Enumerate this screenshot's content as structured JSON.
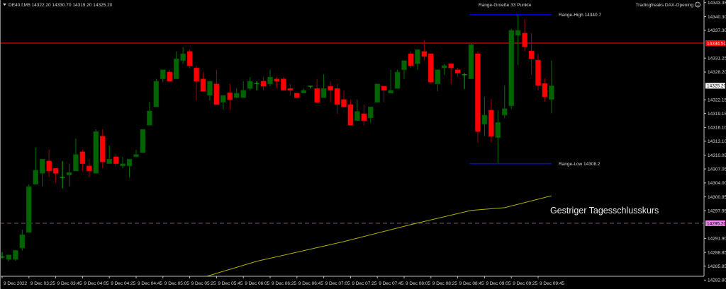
{
  "header": {
    "symbol_line": "DE40.f,M5  14322.20 14330.70 14319.20 14325.20",
    "indicator_name": "Tradingfreaks DAX-Opening",
    "indicator_icon": "smiley-icon"
  },
  "colors": {
    "background": "#000000",
    "bull_body": "#006400",
    "bull_wick": "#007000",
    "doji": "#00c000",
    "bear_body": "#ff0000",
    "bear_wick": "#a00000",
    "axis": "#c0c0c0",
    "range_lines": "#0000ff",
    "prev_day_high_line": "#c00000",
    "prev_close_line": "#6e4a6e",
    "ma_line": "#b0b000"
  },
  "annotations": {
    "range_size": "Range-Groeße 33 Punkte",
    "range_high": "Range-High 14340.7",
    "range_low": "Range-Low 14308.2",
    "prev_close": "Gestriger Tagesschlusskurs"
  },
  "chart_data": {
    "type": "candlestick",
    "symbol": "DE40.f",
    "timeframe": "M5",
    "ylim": [
      14282.8,
      14343.35
    ],
    "grid": false,
    "y_ticks": [
      "14343.35",
      "14340.30",
      "14337.30",
      "14331.25",
      "14328.20",
      "14322.15",
      "14319.15",
      "14316.10",
      "14313.10",
      "14310.05",
      "14307.05",
      "14304.00",
      "14300.95",
      "14297.95",
      "14291.90",
      "14288.85",
      "14285.85",
      "14282.80"
    ],
    "price_labels": [
      {
        "text": "14334.51",
        "value": 14334.51,
        "bg": "#ff0000",
        "fg": "#ffffff"
      },
      {
        "text": "14325.20",
        "value": 14325.2,
        "bg": "#ffffff",
        "fg": "#000000"
      },
      {
        "text": "14295.20",
        "value": 14295.2,
        "bg": "#ee82ee",
        "fg": "#000000"
      }
    ],
    "x_ticks": [
      {
        "time": "03:05",
        "text": "9 Dec 2022"
      },
      {
        "time": "03:25",
        "text": "9 Dec 03:25"
      },
      {
        "time": "03:45",
        "text": "9 Dec 03:45"
      },
      {
        "time": "04:05",
        "text": "9 Dec 04:05"
      },
      {
        "time": "04:25",
        "text": "9 Dec 04:25"
      },
      {
        "time": "04:45",
        "text": "9 Dec 04:45"
      },
      {
        "time": "05:05",
        "text": "9 Dec 05:05"
      },
      {
        "time": "05:25",
        "text": "9 Dec 05:25"
      },
      {
        "time": "05:45",
        "text": "9 Dec 05:45"
      },
      {
        "time": "06:05",
        "text": "9 Dec 06:05"
      },
      {
        "time": "06:25",
        "text": "9 Dec 06:25"
      },
      {
        "time": "06:45",
        "text": "9 Dec 06:45"
      },
      {
        "time": "07:05",
        "text": "9 Dec 07:05"
      },
      {
        "time": "07:25",
        "text": "9 Dec 07:25"
      },
      {
        "time": "07:45",
        "text": "9 Dec 07:45"
      },
      {
        "time": "08:05",
        "text": "9 Dec 08:05"
      },
      {
        "time": "08:25",
        "text": "9 Dec 08:25"
      },
      {
        "time": "08:45",
        "text": "9 Dec 08:45"
      },
      {
        "time": "09:05",
        "text": "9 Dec 09:05"
      },
      {
        "time": "09:25",
        "text": "9 Dec 09:25"
      },
      {
        "time": "09:45",
        "text": "9 Dec 09:45"
      }
    ],
    "hlines": [
      {
        "value": 14334.51,
        "style": "solid",
        "color": "#c00000"
      },
      {
        "value": 14295.2,
        "style": "dashed",
        "color": "#6e4a6e"
      }
    ],
    "range": {
      "high": 14340.7,
      "low": 14308.2,
      "from": "08:55",
      "to": "09:55"
    },
    "moving_average": [
      [
        "05:10",
        14281.2
      ],
      [
        "06:15",
        14286.9
      ],
      [
        "07:20",
        14291.2
      ],
      [
        "08:10",
        14294.9
      ],
      [
        "08:55",
        14298.0
      ],
      [
        "09:20",
        14298.6
      ],
      [
        "09:55",
        14301.2
      ]
    ],
    "candles_columns": [
      "time",
      "open",
      "high",
      "low",
      "close"
    ],
    "candles": [
      [
        "03:05",
        14288.1,
        14288.9,
        14287.5,
        14287.8
      ],
      [
        "03:10",
        14287.3,
        14288.3,
        14286.9,
        14288.3
      ],
      [
        "03:15",
        14287.3,
        14289.3,
        14287.0,
        14289.3
      ],
      [
        "03:20",
        14289.8,
        14293.8,
        14289.2,
        14292.7
      ],
      [
        "03:25",
        14293.2,
        14303.7,
        14293.2,
        14303.2
      ],
      [
        "03:30",
        14303.7,
        14311.7,
        14303.7,
        14306.8
      ],
      [
        "03:35",
        14306.1,
        14309.2,
        14303.2,
        14309.2
      ],
      [
        "03:40",
        14308.8,
        14311.2,
        14305.2,
        14306.6
      ],
      [
        "03:45",
        14307.2,
        14307.2,
        14304.1,
        14306.1
      ],
      [
        "03:50",
        14305.1,
        14308.8,
        14302.8,
        14305.2
      ],
      [
        "03:55",
        14305.7,
        14308.2,
        14303.2,
        14306.3
      ],
      [
        "04:00",
        14306.6,
        14313.7,
        14306.6,
        14310.2
      ],
      [
        "04:05",
        14310.8,
        14311.2,
        14306.6,
        14308.2
      ],
      [
        "04:10",
        14307.7,
        14309.2,
        14305.2,
        14306.6
      ],
      [
        "04:15",
        14306.1,
        14315.7,
        14306.1,
        14315.2
      ],
      [
        "04:20",
        14314.2,
        14315.7,
        14307.2,
        14308.6
      ],
      [
        "04:25",
        14308.2,
        14312.2,
        14308.2,
        14309.2
      ],
      [
        "04:30",
        14309.7,
        14310.2,
        14307.7,
        14308.2
      ],
      [
        "04:35",
        14307.7,
        14309.7,
        14307.2,
        14308.2
      ],
      [
        "04:40",
        14307.7,
        14309.2,
        14305.2,
        14309.2
      ],
      [
        "04:45",
        14309.7,
        14311.2,
        14309.7,
        14310.2
      ],
      [
        "04:50",
        14310.6,
        14315.7,
        14310.6,
        14315.7
      ],
      [
        "04:55",
        14316.6,
        14321.7,
        14316.6,
        14319.7
      ],
      [
        "05:00",
        14320.6,
        14326.7,
        14320.6,
        14326.2
      ],
      [
        "05:05",
        14326.7,
        14328.7,
        14326.0,
        14328.7
      ],
      [
        "05:10",
        14328.2,
        14328.7,
        14326.2,
        14326.2
      ],
      [
        "05:15",
        14326.7,
        14332.7,
        14326.7,
        14331.1
      ],
      [
        "05:20",
        14330.7,
        14333.6,
        14330.0,
        14332.2
      ],
      [
        "05:25",
        14332.7,
        14333.1,
        14329.0,
        14329.6
      ],
      [
        "05:30",
        14329.1,
        14329.6,
        14322.0,
        14326.2
      ],
      [
        "05:35",
        14326.7,
        14328.2,
        14324.0,
        14324.0
      ],
      [
        "05:40",
        14323.1,
        14326.2,
        14322.0,
        14326.2
      ],
      [
        "05:45",
        14325.6,
        14328.7,
        14321.1,
        14321.1
      ],
      [
        "05:50",
        14321.6,
        14323.1,
        14320.0,
        14323.1
      ],
      [
        "05:55",
        14323.7,
        14325.6,
        14320.0,
        14322.2
      ],
      [
        "06:00",
        14322.6,
        14324.6,
        14322.6,
        14323.6
      ],
      [
        "06:05",
        14322.6,
        14326.2,
        14322.6,
        14324.2
      ],
      [
        "06:10",
        14324.6,
        14327.1,
        14324.2,
        14326.2
      ],
      [
        "06:15",
        14325.6,
        14326.2,
        14324.2,
        14325.7
      ],
      [
        "06:20",
        14326.2,
        14327.1,
        14324.2,
        14325.1
      ],
      [
        "06:25",
        14325.6,
        14328.7,
        14325.1,
        14327.1
      ],
      [
        "06:30",
        14326.7,
        14327.1,
        14324.6,
        14326.2
      ],
      [
        "06:35",
        14326.7,
        14327.1,
        14324.2,
        14324.2
      ],
      [
        "06:40",
        14324.6,
        14325.6,
        14323.1,
        14324.2
      ],
      [
        "06:45",
        14323.6,
        14323.6,
        14322.6,
        14322.6
      ],
      [
        "06:50",
        14323.6,
        14324.6,
        14323.6,
        14324.2
      ],
      [
        "06:55",
        14325.0,
        14325.1,
        14324.6,
        14325.1
      ],
      [
        "07:00",
        14324.6,
        14326.7,
        14321.6,
        14321.6
      ],
      [
        "07:05",
        14322.6,
        14327.7,
        14322.6,
        14324.6
      ],
      [
        "07:10",
        14325.1,
        14326.2,
        14321.6,
        14324.2
      ],
      [
        "07:15",
        14324.6,
        14325.6,
        14319.1,
        14321.1
      ],
      [
        "07:20",
        14322.2,
        14324.2,
        14320.6,
        14320.6
      ],
      [
        "07:25",
        14321.1,
        14322.2,
        14316.6,
        14316.6
      ],
      [
        "07:30",
        14317.6,
        14322.2,
        14317.6,
        14319.6
      ],
      [
        "07:35",
        14319.1,
        14321.1,
        14316.6,
        14317.6
      ],
      [
        "07:40",
        14318.2,
        14320.6,
        14317.1,
        14320.6
      ],
      [
        "07:45",
        14321.6,
        14325.6,
        14321.6,
        14325.6
      ],
      [
        "07:50",
        14325.1,
        14325.1,
        14321.6,
        14324.2
      ],
      [
        "07:55",
        14323.6,
        14328.7,
        14323.6,
        14324.2
      ],
      [
        "08:00",
        14324.6,
        14328.7,
        14324.6,
        14328.2
      ],
      [
        "08:05",
        14328.7,
        14330.7,
        14326.7,
        14330.7
      ],
      [
        "08:10",
        14332.2,
        14332.7,
        14329.1,
        14329.6
      ],
      [
        "08:15",
        14330.0,
        14333.1,
        14328.7,
        14333.1
      ],
      [
        "08:20",
        14332.7,
        14335.1,
        14330.7,
        14331.6
      ],
      [
        "08:25",
        14332.2,
        14332.2,
        14325.6,
        14326.0
      ],
      [
        "08:30",
        14325.6,
        14328.7,
        14324.0,
        14328.7
      ],
      [
        "08:35",
        14329.1,
        14330.0,
        14327.6,
        14329.6
      ],
      [
        "08:40",
        14330.0,
        14330.0,
        14325.6,
        14329.1
      ],
      [
        "08:45",
        14328.7,
        14329.1,
        14327.1,
        14328.0
      ],
      [
        "08:50",
        14327.4,
        14328.0,
        14324.5,
        14327.6
      ],
      [
        "08:55",
        14326.7,
        14334.4,
        14326.7,
        14334.2
      ],
      [
        "09:00",
        14332.2,
        14332.7,
        14312.8,
        14315.2
      ],
      [
        "09:05",
        14316.8,
        14322.8,
        14314.2,
        14318.8
      ],
      [
        "09:10",
        14319.9,
        14322.3,
        14312.8,
        14314.2
      ],
      [
        "09:15",
        14313.9,
        14319.9,
        14308.3,
        14317.2
      ],
      [
        "09:20",
        14318.8,
        14325.3,
        14318.2,
        14320.2
      ],
      [
        "09:25",
        14320.8,
        14337.6,
        14320.2,
        14337.3
      ],
      [
        "09:30",
        14336.2,
        14340.7,
        14329.7,
        14337.3
      ],
      [
        "09:35",
        14336.7,
        14339.8,
        14332.7,
        14333.7
      ],
      [
        "09:40",
        14332.8,
        14336.7,
        14327.6,
        14331.1
      ],
      [
        "09:45",
        14330.8,
        14332.2,
        14324.2,
        14325.3
      ],
      [
        "09:50",
        14325.7,
        14326.8,
        14321.7,
        14322.8
      ],
      [
        "09:55",
        14322.2,
        14330.7,
        14319.2,
        14325.2
      ]
    ]
  }
}
